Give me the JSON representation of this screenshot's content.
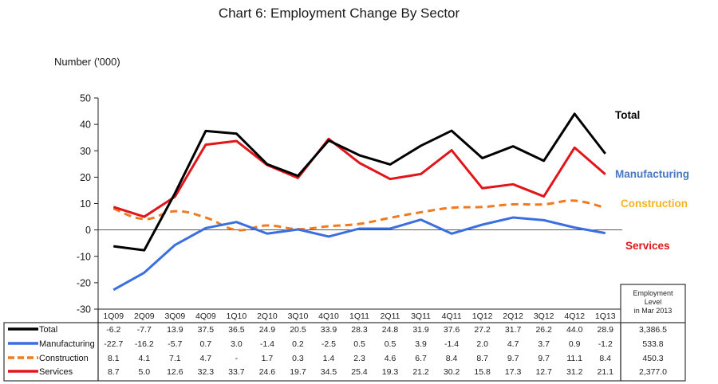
{
  "chart_data": {
    "type": "line",
    "title": "Chart 6: Employment Change By Sector",
    "ylabel": "Number ('000)",
    "xlabel": "",
    "ylim": [
      -30,
      50
    ],
    "yticks": [
      "50",
      "40",
      "30",
      "20",
      "10",
      "0",
      "-10",
      "-20",
      "-30"
    ],
    "ytick_values": [
      50,
      40,
      30,
      20,
      10,
      0,
      -10,
      -20,
      -30
    ],
    "grid": false,
    "categories": [
      "1Q09",
      "2Q09",
      "3Q09",
      "4Q09",
      "1Q10",
      "2Q10",
      "3Q10",
      "4Q10",
      "1Q11",
      "2Q11",
      "3Q11",
      "4Q11",
      "1Q12",
      "2Q12",
      "3Q12",
      "4Q12",
      "1Q13"
    ],
    "series": [
      {
        "name": "Total",
        "label": "Total",
        "color": "#000000",
        "label_color": "#000000",
        "dashed": false,
        "values": [
          -6.2,
          -7.7,
          13.9,
          37.5,
          36.5,
          24.9,
          20.5,
          33.9,
          28.3,
          24.8,
          31.9,
          37.6,
          27.2,
          31.7,
          26.2,
          44.0,
          28.9
        ],
        "display": [
          "-6.2",
          "-7.7",
          "13.9",
          "37.5",
          "36.5",
          "24.9",
          "20.5",
          "33.9",
          "28.3",
          "24.8",
          "31.9",
          "37.6",
          "27.2",
          "31.7",
          "26.2",
          "44.0",
          "28.9"
        ],
        "level": "3,386.5"
      },
      {
        "name": "Manufacturing",
        "label": "Manufacturing",
        "color": "#3b6fe0",
        "label_color": "#4a78c0",
        "dashed": false,
        "values": [
          -22.7,
          -16.2,
          -5.7,
          0.7,
          3.0,
          -1.4,
          0.2,
          -2.5,
          0.5,
          0.5,
          3.9,
          -1.4,
          2.0,
          4.7,
          3.7,
          0.9,
          -1.2
        ],
        "display": [
          "-22.7",
          "-16.2",
          "-5.7",
          "0.7",
          "3.0",
          "-1.4",
          "0.2",
          "-2.5",
          "0.5",
          "0.5",
          "3.9",
          "-1.4",
          "2.0",
          "4.7",
          "3.7",
          "0.9",
          "-1.2"
        ],
        "level": "533.8"
      },
      {
        "name": "Construction",
        "label": "Construction",
        "color": "#f07a22",
        "label_color": "#f5b324",
        "dashed": true,
        "values": [
          8.1,
          4.1,
          7.1,
          4.7,
          null,
          1.7,
          0.3,
          1.4,
          2.3,
          4.6,
          6.7,
          8.4,
          8.7,
          9.7,
          9.7,
          11.1,
          8.4
        ],
        "display": [
          "8.1",
          "4.1",
          "7.1",
          "4.7",
          "-",
          "1.7",
          "0.3",
          "1.4",
          "2.3",
          "4.6",
          "6.7",
          "8.4",
          "8.7",
          "9.7",
          "9.7",
          "11.1",
          "8.4"
        ],
        "level": "450.3"
      },
      {
        "name": "Services",
        "label": "Services",
        "color": "#e0161b",
        "label_color": "#e0161b",
        "dashed": false,
        "values": [
          8.7,
          5.0,
          12.6,
          32.3,
          33.7,
          24.6,
          19.7,
          34.5,
          25.4,
          19.3,
          21.2,
          30.2,
          15.8,
          17.3,
          12.7,
          31.2,
          21.1
        ],
        "display": [
          "8.7",
          "5.0",
          "12.6",
          "32.3",
          "33.7",
          "24.6",
          "19.7",
          "34.5",
          "25.4",
          "19.3",
          "21.2",
          "30.2",
          "15.8",
          "17.3",
          "12.7",
          "31.2",
          "21.1"
        ],
        "level": "2,377.0"
      }
    ],
    "legend": "table-bottom",
    "level_header": [
      "Employment",
      "Level",
      "in Mar 2013"
    ]
  }
}
